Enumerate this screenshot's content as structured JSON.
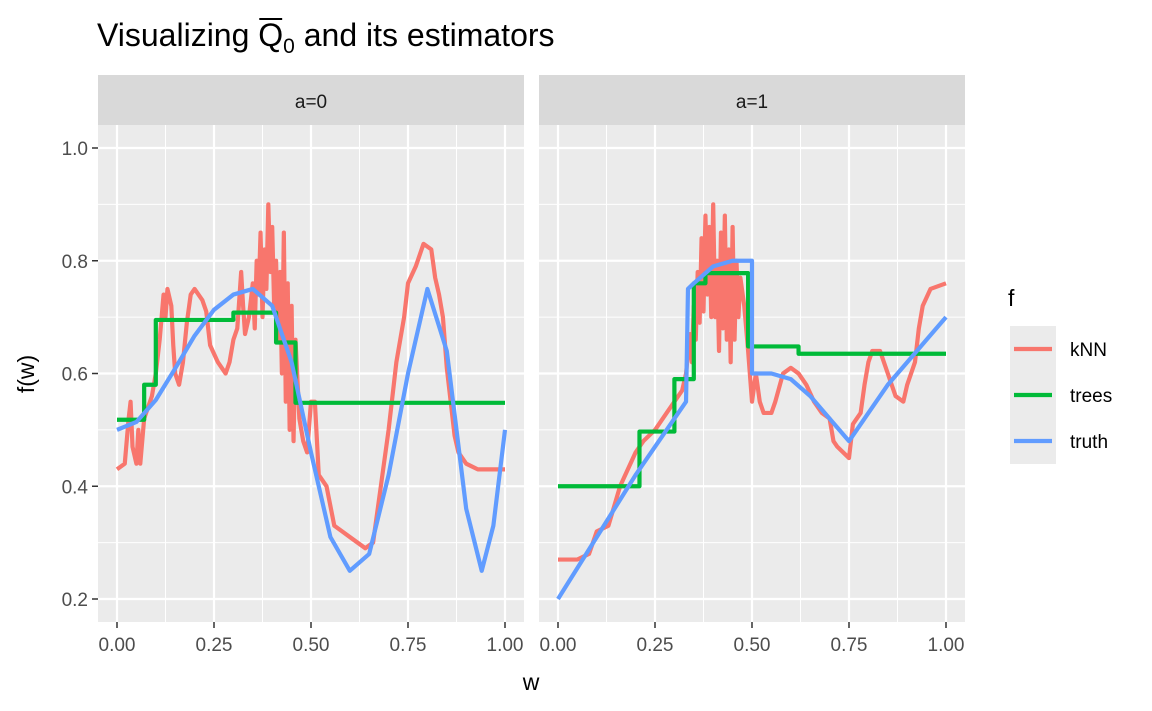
{
  "chart_data": {
    "type": "line",
    "title_main": "Visualizing ",
    "title_symbol": "Q",
    "title_subscript": "0",
    "title_rest": " and its estimators",
    "xlabel": "w",
    "ylabel": "f(w)",
    "xlim": [
      0,
      1
    ],
    "ylim": [
      0.2,
      1.0
    ],
    "x_ticks": [
      0,
      0.25,
      0.5,
      0.75,
      1.0
    ],
    "x_tick_labels": [
      "0.00",
      "0.25",
      "0.50",
      "0.75",
      "1.00"
    ],
    "y_ticks": [
      0.2,
      0.4,
      0.6,
      0.8,
      1.0
    ],
    "y_tick_labels": [
      "0.2",
      "0.4",
      "0.6",
      "0.8",
      "1.0"
    ],
    "grid": true,
    "legend": {
      "title": "f",
      "position": "right",
      "entries": [
        {
          "name": "kNN",
          "color": "#F8766D"
        },
        {
          "name": "trees",
          "color": "#00BA38"
        },
        {
          "name": "truth",
          "color": "#619CFF"
        }
      ]
    },
    "panels": [
      {
        "label": "a=0",
        "series": [
          {
            "name": "kNN",
            "color": "#F8766D",
            "points": [
              [
                0.0,
                0.43
              ],
              [
                0.02,
                0.44
              ],
              [
                0.03,
                0.52
              ],
              [
                0.035,
                0.55
              ],
              [
                0.04,
                0.47
              ],
              [
                0.05,
                0.44
              ],
              [
                0.055,
                0.5
              ],
              [
                0.06,
                0.44
              ],
              [
                0.07,
                0.52
              ],
              [
                0.08,
                0.54
              ],
              [
                0.09,
                0.56
              ],
              [
                0.1,
                0.6
              ],
              [
                0.11,
                0.66
              ],
              [
                0.12,
                0.74
              ],
              [
                0.125,
                0.7
              ],
              [
                0.13,
                0.75
              ],
              [
                0.14,
                0.72
              ],
              [
                0.145,
                0.65
              ],
              [
                0.15,
                0.6
              ],
              [
                0.16,
                0.58
              ],
              [
                0.17,
                0.62
              ],
              [
                0.18,
                0.69
              ],
              [
                0.19,
                0.74
              ],
              [
                0.2,
                0.75
              ],
              [
                0.22,
                0.73
              ],
              [
                0.23,
                0.71
              ],
              [
                0.24,
                0.65
              ],
              [
                0.26,
                0.62
              ],
              [
                0.28,
                0.6
              ],
              [
                0.29,
                0.62
              ],
              [
                0.3,
                0.66
              ],
              [
                0.31,
                0.68
              ],
              [
                0.32,
                0.78
              ],
              [
                0.325,
                0.72
              ],
              [
                0.33,
                0.67
              ],
              [
                0.34,
                0.7
              ],
              [
                0.35,
                0.76
              ],
              [
                0.355,
                0.68
              ],
              [
                0.36,
                0.8
              ],
              [
                0.365,
                0.74
              ],
              [
                0.37,
                0.85
              ],
              [
                0.375,
                0.7
              ],
              [
                0.38,
                0.82
              ],
              [
                0.385,
                0.75
              ],
              [
                0.39,
                0.9
              ],
              [
                0.395,
                0.78
              ],
              [
                0.4,
                0.86
              ],
              [
                0.405,
                0.72
              ],
              [
                0.41,
                0.8
              ],
              [
                0.415,
                0.66
              ],
              [
                0.42,
                0.78
              ],
              [
                0.425,
                0.6
              ],
              [
                0.43,
                0.85
              ],
              [
                0.435,
                0.55
              ],
              [
                0.44,
                0.76
              ],
              [
                0.445,
                0.5
              ],
              [
                0.45,
                0.72
              ],
              [
                0.455,
                0.48
              ],
              [
                0.46,
                0.66
              ],
              [
                0.47,
                0.52
              ],
              [
                0.48,
                0.48
              ],
              [
                0.49,
                0.46
              ],
              [
                0.5,
                0.55
              ],
              [
                0.51,
                0.55
              ],
              [
                0.52,
                0.42
              ],
              [
                0.54,
                0.4
              ],
              [
                0.56,
                0.33
              ],
              [
                0.58,
                0.32
              ],
              [
                0.6,
                0.31
              ],
              [
                0.62,
                0.3
              ],
              [
                0.64,
                0.29
              ],
              [
                0.66,
                0.3
              ],
              [
                0.68,
                0.4
              ],
              [
                0.7,
                0.5
              ],
              [
                0.72,
                0.62
              ],
              [
                0.74,
                0.7
              ],
              [
                0.75,
                0.76
              ],
              [
                0.77,
                0.79
              ],
              [
                0.79,
                0.83
              ],
              [
                0.81,
                0.82
              ],
              [
                0.82,
                0.77
              ],
              [
                0.83,
                0.74
              ],
              [
                0.84,
                0.7
              ],
              [
                0.85,
                0.61
              ],
              [
                0.86,
                0.55
              ],
              [
                0.87,
                0.49
              ],
              [
                0.88,
                0.46
              ],
              [
                0.9,
                0.44
              ],
              [
                0.93,
                0.43
              ],
              [
                1.0,
                0.43
              ]
            ]
          },
          {
            "name": "trees",
            "color": "#00BA38",
            "points": [
              [
                0.0,
                0.518
              ],
              [
                0.07,
                0.518
              ],
              [
                0.07,
                0.58
              ],
              [
                0.1,
                0.58
              ],
              [
                0.1,
                0.695
              ],
              [
                0.3,
                0.695
              ],
              [
                0.3,
                0.708
              ],
              [
                0.41,
                0.708
              ],
              [
                0.41,
                0.655
              ],
              [
                0.46,
                0.655
              ],
              [
                0.46,
                0.548
              ],
              [
                1.0,
                0.548
              ]
            ]
          },
          {
            "name": "truth",
            "color": "#619CFF",
            "points": [
              [
                0.0,
                0.5
              ],
              [
                0.05,
                0.514
              ],
              [
                0.1,
                0.553
              ],
              [
                0.15,
                0.609
              ],
              [
                0.2,
                0.667
              ],
              [
                0.25,
                0.713
              ],
              [
                0.3,
                0.74
              ],
              [
                0.35,
                0.75
              ],
              [
                0.4,
                0.72
              ],
              [
                0.45,
                0.62
              ],
              [
                0.5,
                0.46
              ],
              [
                0.55,
                0.31
              ],
              [
                0.6,
                0.25
              ],
              [
                0.65,
                0.28
              ],
              [
                0.7,
                0.42
              ],
              [
                0.75,
                0.6
              ],
              [
                0.8,
                0.75
              ],
              [
                0.85,
                0.64
              ],
              [
                0.9,
                0.36
              ],
              [
                0.94,
                0.25
              ],
              [
                0.97,
                0.33
              ],
              [
                1.0,
                0.5
              ]
            ]
          }
        ]
      },
      {
        "label": "a=1",
        "series": [
          {
            "name": "kNN",
            "color": "#F8766D",
            "points": [
              [
                0.0,
                0.27
              ],
              [
                0.05,
                0.27
              ],
              [
                0.08,
                0.28
              ],
              [
                0.1,
                0.32
              ],
              [
                0.13,
                0.33
              ],
              [
                0.16,
                0.4
              ],
              [
                0.2,
                0.46
              ],
              [
                0.22,
                0.48
              ],
              [
                0.25,
                0.5
              ],
              [
                0.28,
                0.53
              ],
              [
                0.3,
                0.55
              ],
              [
                0.32,
                0.57
              ],
              [
                0.33,
                0.6
              ],
              [
                0.34,
                0.67
              ],
              [
                0.345,
                0.62
              ],
              [
                0.35,
                0.72
              ],
              [
                0.355,
                0.66
              ],
              [
                0.36,
                0.78
              ],
              [
                0.365,
                0.69
              ],
              [
                0.37,
                0.84
              ],
              [
                0.375,
                0.71
              ],
              [
                0.38,
                0.88
              ],
              [
                0.385,
                0.74
              ],
              [
                0.39,
                0.86
              ],
              [
                0.395,
                0.7
              ],
              [
                0.4,
                0.9
              ],
              [
                0.405,
                0.7
              ],
              [
                0.41,
                0.8
              ],
              [
                0.415,
                0.64
              ],
              [
                0.42,
                0.85
              ],
              [
                0.425,
                0.68
              ],
              [
                0.43,
                0.88
              ],
              [
                0.435,
                0.66
              ],
              [
                0.44,
                0.82
              ],
              [
                0.445,
                0.62
              ],
              [
                0.45,
                0.86
              ],
              [
                0.455,
                0.66
              ],
              [
                0.46,
                0.8
              ],
              [
                0.465,
                0.7
              ],
              [
                0.47,
                0.77
              ],
              [
                0.48,
                0.72
              ],
              [
                0.49,
                0.64
              ],
              [
                0.5,
                0.55
              ],
              [
                0.51,
                0.6
              ],
              [
                0.52,
                0.55
              ],
              [
                0.53,
                0.53
              ],
              [
                0.55,
                0.53
              ],
              [
                0.56,
                0.55
              ],
              [
                0.58,
                0.6
              ],
              [
                0.6,
                0.61
              ],
              [
                0.62,
                0.6
              ],
              [
                0.64,
                0.58
              ],
              [
                0.66,
                0.55
              ],
              [
                0.68,
                0.53
              ],
              [
                0.7,
                0.52
              ],
              [
                0.71,
                0.48
              ],
              [
                0.72,
                0.47
              ],
              [
                0.75,
                0.45
              ],
              [
                0.76,
                0.51
              ],
              [
                0.78,
                0.53
              ],
              [
                0.79,
                0.58
              ],
              [
                0.8,
                0.62
              ],
              [
                0.81,
                0.64
              ],
              [
                0.83,
                0.64
              ],
              [
                0.85,
                0.6
              ],
              [
                0.87,
                0.56
              ],
              [
                0.89,
                0.55
              ],
              [
                0.9,
                0.58
              ],
              [
                0.92,
                0.62
              ],
              [
                0.93,
                0.68
              ],
              [
                0.94,
                0.72
              ],
              [
                0.96,
                0.75
              ],
              [
                1.0,
                0.76
              ]
            ]
          },
          {
            "name": "trees",
            "color": "#00BA38",
            "points": [
              [
                0.0,
                0.4
              ],
              [
                0.21,
                0.4
              ],
              [
                0.21,
                0.497
              ],
              [
                0.3,
                0.497
              ],
              [
                0.3,
                0.59
              ],
              [
                0.35,
                0.59
              ],
              [
                0.35,
                0.76
              ],
              [
                0.38,
                0.76
              ],
              [
                0.38,
                0.778
              ],
              [
                0.49,
                0.778
              ],
              [
                0.49,
                0.648
              ],
              [
                0.62,
                0.648
              ],
              [
                0.62,
                0.635
              ],
              [
                1.0,
                0.635
              ]
            ]
          },
          {
            "name": "truth",
            "color": "#619CFF",
            "points": [
              [
                0.0,
                0.2
              ],
              [
                0.1,
                0.31
              ],
              [
                0.2,
                0.42
              ],
              [
                0.3,
                0.52
              ],
              [
                0.33,
                0.55
              ],
              [
                0.335,
                0.75
              ],
              [
                0.35,
                0.76
              ],
              [
                0.4,
                0.79
              ],
              [
                0.45,
                0.8
              ],
              [
                0.49,
                0.8
              ],
              [
                0.5,
                0.8
              ],
              [
                0.5,
                0.6
              ],
              [
                0.55,
                0.6
              ],
              [
                0.6,
                0.59
              ],
              [
                0.65,
                0.56
              ],
              [
                0.7,
                0.52
              ],
              [
                0.75,
                0.48
              ],
              [
                0.8,
                0.53
              ],
              [
                0.85,
                0.58
              ],
              [
                0.9,
                0.62
              ],
              [
                0.95,
                0.66
              ],
              [
                1.0,
                0.7
              ]
            ]
          }
        ]
      }
    ]
  }
}
